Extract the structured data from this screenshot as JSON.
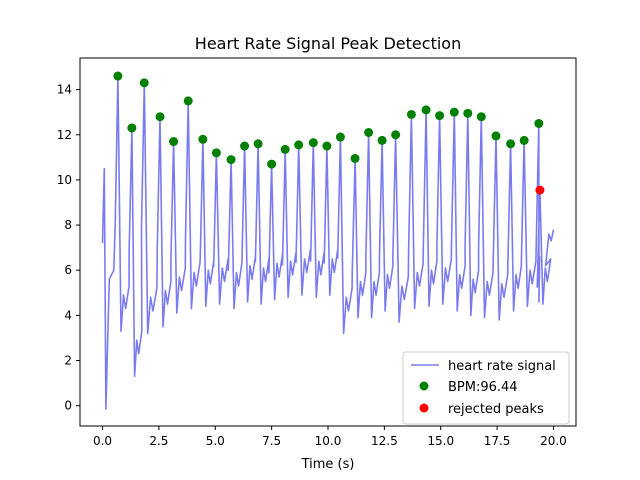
{
  "chart_data": {
    "type": "line",
    "title": "Heart Rate Signal Peak Detection",
    "xlabel": "Time (s)",
    "ylabel": "",
    "xlim": [
      -1.0,
      21.0
    ],
    "ylim": [
      -0.9,
      15.4
    ],
    "xticks": [
      0.0,
      2.5,
      5.0,
      7.5,
      10.0,
      12.5,
      15.0,
      17.5,
      20.0
    ],
    "xtick_labels": [
      "0.0",
      "2.5",
      "5.0",
      "7.5",
      "10.0",
      "12.5",
      "15.0",
      "17.5",
      "20.0"
    ],
    "yticks": [
      0,
      2,
      4,
      6,
      8,
      10,
      12,
      14
    ],
    "ytick_labels": [
      "0",
      "2",
      "4",
      "6",
      "8",
      "10",
      "12",
      "14"
    ],
    "grid": false,
    "legend_position": "lower-right",
    "signal": {
      "name": "heart rate signal",
      "color": "#7b7bf0",
      "start": [
        0.0,
        7.2
      ],
      "end": [
        20.0,
        7.8
      ],
      "first_trough": [
        0.15,
        -0.15
      ]
    },
    "accepted_peaks": {
      "name": "BPM:96.44",
      "color": "#008000",
      "x": [
        0.68,
        1.3,
        1.85,
        2.55,
        3.15,
        3.8,
        4.45,
        5.05,
        5.7,
        6.3,
        6.9,
        7.5,
        8.1,
        8.7,
        9.35,
        9.95,
        10.55,
        11.2,
        11.8,
        12.4,
        13.0,
        13.7,
        14.35,
        14.95,
        15.6,
        16.2,
        16.8,
        17.45,
        18.1,
        18.7,
        19.35
      ],
      "y": [
        14.6,
        12.3,
        14.3,
        12.8,
        11.7,
        13.5,
        11.8,
        11.2,
        10.9,
        11.5,
        11.6,
        10.7,
        11.35,
        11.55,
        11.65,
        11.5,
        11.9,
        10.95,
        12.1,
        11.75,
        12.0,
        12.9,
        13.1,
        12.85,
        13.0,
        12.95,
        12.8,
        11.95,
        11.6,
        11.75,
        12.5
      ]
    },
    "rejected_peaks": {
      "name": "rejected peaks",
      "color": "#ff0000",
      "x": [
        19.4
      ],
      "y": [
        9.55
      ]
    }
  }
}
